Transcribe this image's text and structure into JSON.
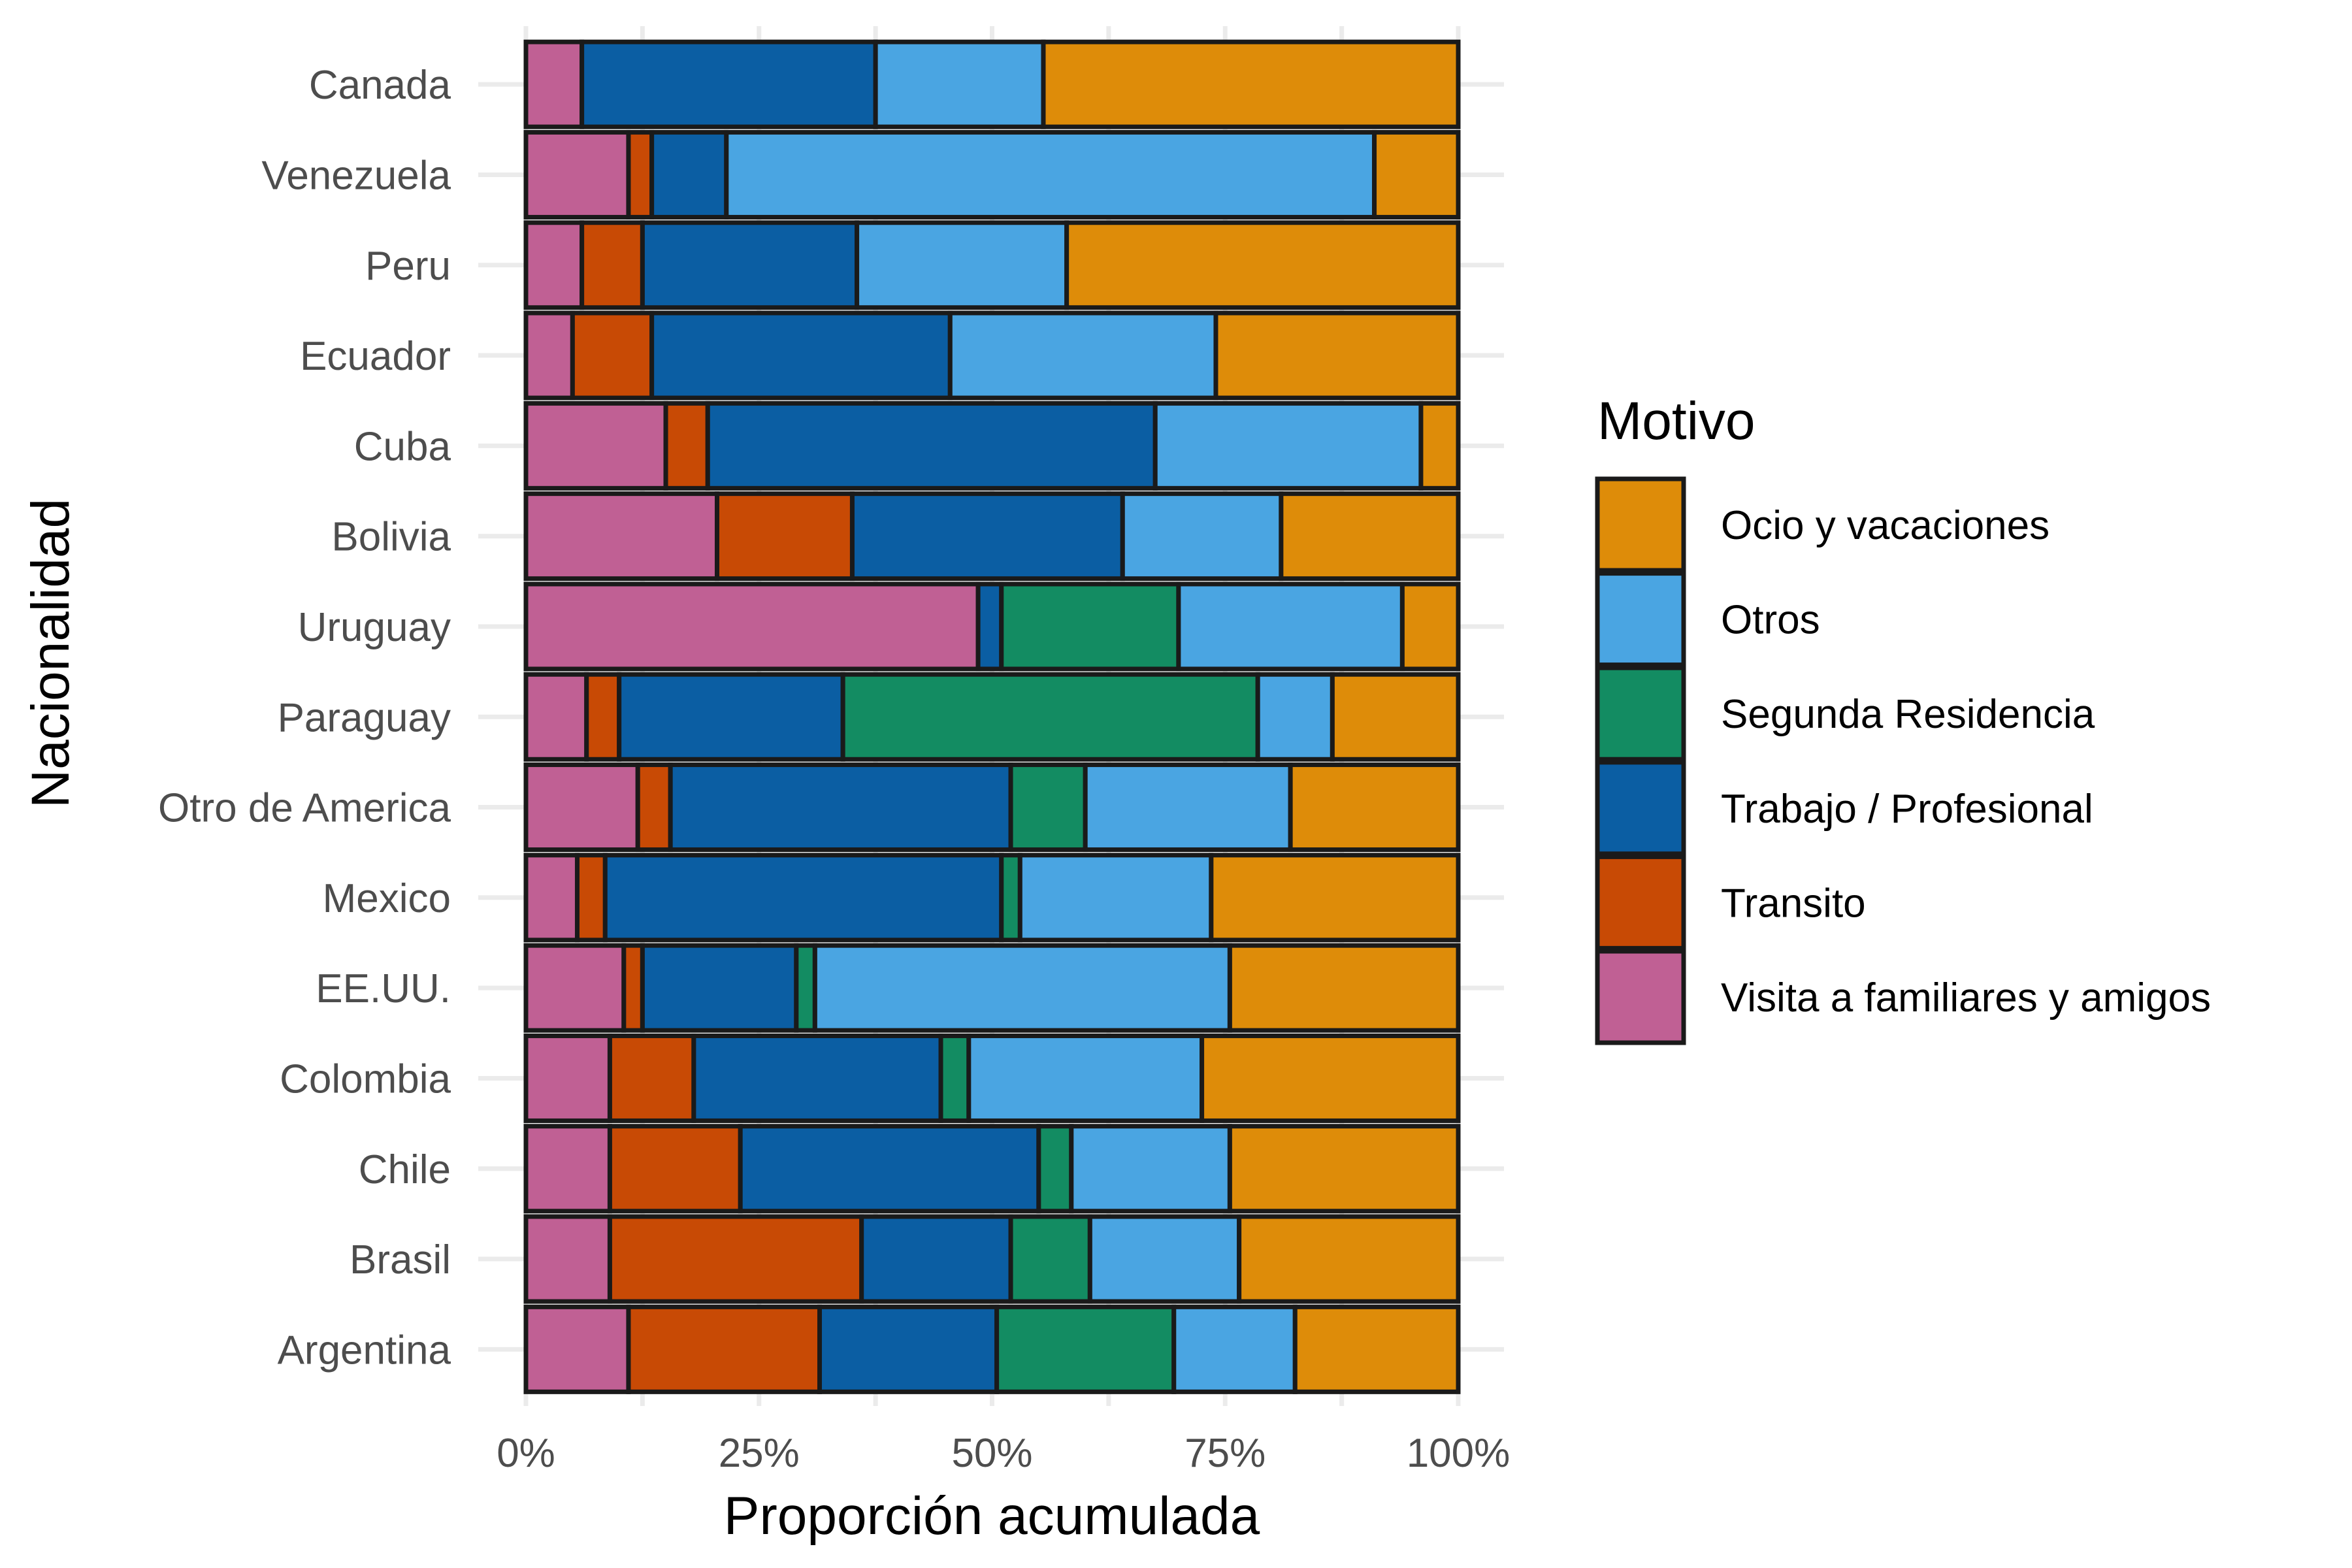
{
  "chart_data": {
    "type": "bar",
    "orientation": "horizontal",
    "stacked": "percent",
    "xlabel": "Proporción acumulada",
    "ylabel": "Nacionalidad",
    "xlim": [
      0,
      1
    ],
    "x_ticks": [
      {
        "value": 0,
        "label": "0%"
      },
      {
        "value": 0.25,
        "label": "25%"
      },
      {
        "value": 0.5,
        "label": "50%"
      },
      {
        "value": 0.75,
        "label": "75%"
      },
      {
        "value": 1,
        "label": "100%"
      }
    ],
    "grid": true,
    "legend": {
      "title": "Motivo",
      "placement": "right",
      "entries": [
        "Ocio y vacaciones",
        "Otros",
        "Segunda Residencia",
        "Trabajo / Profesional",
        "Transito",
        "Visita a familiares y amigos"
      ]
    },
    "categories": [
      "Canada",
      "Venezuela",
      "Peru",
      "Ecuador",
      "Cuba",
      "Bolivia",
      "Uruguay",
      "Paraguay",
      "Otro de America",
      "Mexico",
      "EE.UU.",
      "Colombia",
      "Chile",
      "Brasil",
      "Argentina"
    ],
    "series": [
      {
        "name": "Visita a familiares y amigos",
        "color": "#c06094",
        "values": [
          0.06,
          0.11,
          0.06,
          0.05,
          0.15,
          0.205,
          0.485,
          0.065,
          0.12,
          0.055,
          0.105,
          0.09,
          0.09,
          0.09,
          0.11
        ]
      },
      {
        "name": "Transito",
        "color": "#c84a05",
        "values": [
          0.0,
          0.025,
          0.065,
          0.085,
          0.045,
          0.145,
          0.0,
          0.035,
          0.035,
          0.03,
          0.02,
          0.09,
          0.14,
          0.27,
          0.205
        ]
      },
      {
        "name": "Trabajo / Profesional",
        "color": "#0b5ea3",
        "values": [
          0.315,
          0.08,
          0.23,
          0.32,
          0.48,
          0.29,
          0.025,
          0.24,
          0.365,
          0.425,
          0.165,
          0.265,
          0.32,
          0.16,
          0.19
        ]
      },
      {
        "name": "Segunda Residencia",
        "color": "#138c62",
        "values": [
          0.0,
          0.0,
          0.0,
          0.0,
          0.0,
          0.0,
          0.19,
          0.445,
          0.08,
          0.02,
          0.02,
          0.03,
          0.035,
          0.085,
          0.19
        ]
      },
      {
        "name": "Otros",
        "color": "#4aa5e2",
        "values": [
          0.18,
          0.695,
          0.225,
          0.285,
          0.285,
          0.17,
          0.24,
          0.08,
          0.22,
          0.205,
          0.445,
          0.25,
          0.17,
          0.16,
          0.13
        ]
      },
      {
        "name": "Ocio y vacaciones",
        "color": "#de8c09",
        "values": [
          0.445,
          0.09,
          0.42,
          0.26,
          0.04,
          0.19,
          0.06,
          0.135,
          0.18,
          0.265,
          0.245,
          0.275,
          0.245,
          0.235,
          0.175
        ]
      }
    ]
  }
}
